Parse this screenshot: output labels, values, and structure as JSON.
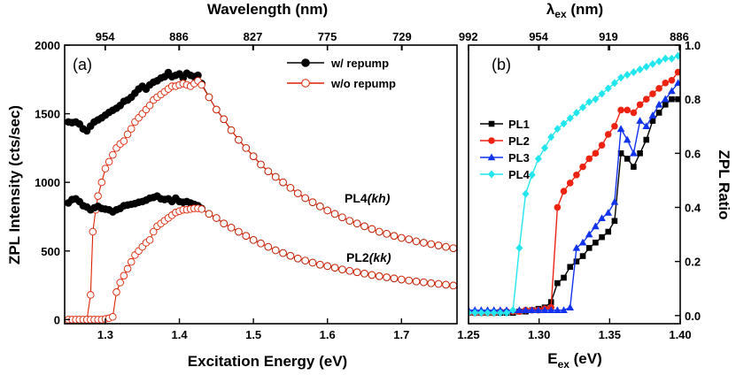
{
  "chart_data": [
    {
      "panel": "(a)",
      "type": "scatter",
      "xlabel": "Excitation Energy (eV)",
      "ylabel": "ZPL Intensity (cts/sec)",
      "top_xlabel": "Wavelength (nm)",
      "xlim": [
        1.245,
        1.775
      ],
      "ylim": [
        -30,
        2000
      ],
      "xticks": [
        1.3,
        1.4,
        1.5,
        1.6,
        1.7
      ],
      "xtick_labels": [
        "1.3",
        "1.4",
        "1.5",
        "1.6",
        "1.7"
      ],
      "yticks": [
        0,
        500,
        1000,
        1500,
        2000
      ],
      "ytick_labels": [
        "0",
        "500",
        "1000",
        "1500",
        "2000"
      ],
      "top_ticks": [
        954,
        886,
        827,
        775,
        729
      ],
      "top_tick_labels": [
        "954",
        "886",
        "827",
        "775",
        "729"
      ],
      "legend": [
        "w/ repump",
        "w/o repump"
      ],
      "annotations": [
        {
          "name": "PL4",
          "label": "(kh)"
        },
        {
          "name": "PL2",
          "label": "(kk)"
        }
      ],
      "series": [
        {
          "name": "PL4 w/ repump",
          "color": "#000000",
          "marker": "filled-circle",
          "x": [
            1.25,
            1.255,
            1.26,
            1.265,
            1.27,
            1.275,
            1.28,
            1.285,
            1.29,
            1.295,
            1.3,
            1.305,
            1.31,
            1.315,
            1.32,
            1.325,
            1.33,
            1.335,
            1.34,
            1.345,
            1.35,
            1.355,
            1.36,
            1.365,
            1.37,
            1.375,
            1.38,
            1.385,
            1.39,
            1.395,
            1.4,
            1.405,
            1.41,
            1.415,
            1.42,
            1.425,
            1.43,
            1.44,
            1.45,
            1.46,
            1.47,
            1.48,
            1.49,
            1.5,
            1.51,
            1.52,
            1.53,
            1.54,
            1.55,
            1.56,
            1.57,
            1.58,
            1.59,
            1.6,
            1.61,
            1.62,
            1.63,
            1.64,
            1.65,
            1.66,
            1.67,
            1.68,
            1.69,
            1.7,
            1.71,
            1.72,
            1.73,
            1.74,
            1.75,
            1.76,
            1.77
          ],
          "y": [
            1440,
            1435,
            1440,
            1425,
            1390,
            1375,
            1410,
            1440,
            1455,
            1470,
            1490,
            1510,
            1525,
            1540,
            1560,
            1590,
            1600,
            1620,
            1650,
            1680,
            1700,
            1680,
            1710,
            1730,
            1740,
            1760,
            1770,
            1800,
            1770,
            1780,
            1790,
            1760,
            1795,
            1780,
            1770,
            1780,
            1720,
            1620,
            1530,
            1460,
            1380,
            1310,
            1250,
            1190,
            1130,
            1080,
            1040,
            1000,
            960,
            920,
            885,
            855,
            825,
            795,
            770,
            745,
            720,
            700,
            680,
            660,
            640,
            625,
            610,
            595,
            585,
            570,
            560,
            550,
            540,
            530,
            520
          ]
        },
        {
          "name": "PL4 w/o repump",
          "color": "#dd2200",
          "marker": "open-circle",
          "x": [
            1.275,
            1.28,
            1.283,
            1.287,
            1.29,
            1.295,
            1.3,
            1.305,
            1.31,
            1.315,
            1.32,
            1.325,
            1.33,
            1.335,
            1.34,
            1.345,
            1.35,
            1.355,
            1.36,
            1.365,
            1.37,
            1.375,
            1.38,
            1.385,
            1.39,
            1.395,
            1.4,
            1.405,
            1.41,
            1.415,
            1.42,
            1.425,
            1.43,
            1.44,
            1.45,
            1.46,
            1.47,
            1.48,
            1.49,
            1.5,
            1.51,
            1.52,
            1.53,
            1.54,
            1.55,
            1.56,
            1.57,
            1.58,
            1.59,
            1.6,
            1.61,
            1.62,
            1.63,
            1.64,
            1.65,
            1.66,
            1.67,
            1.68,
            1.69,
            1.7,
            1.71,
            1.72,
            1.73,
            1.74,
            1.75,
            1.76,
            1.77
          ],
          "y": [
            0,
            180,
            640,
            800,
            900,
            1000,
            1100,
            1150,
            1200,
            1250,
            1280,
            1300,
            1350,
            1390,
            1440,
            1470,
            1500,
            1530,
            1560,
            1600,
            1620,
            1640,
            1660,
            1680,
            1700,
            1700,
            1710,
            1720,
            1710,
            1700,
            1720,
            1740,
            1710,
            1620,
            1530,
            1460,
            1380,
            1310,
            1250,
            1190,
            1130,
            1080,
            1040,
            1000,
            960,
            920,
            885,
            855,
            825,
            795,
            770,
            745,
            720,
            700,
            680,
            660,
            640,
            625,
            610,
            595,
            585,
            570,
            560,
            550,
            540,
            530,
            520
          ]
        },
        {
          "name": "PL2 w/ repump",
          "color": "#000000",
          "marker": "filled-circle",
          "x": [
            1.25,
            1.255,
            1.26,
            1.265,
            1.27,
            1.275,
            1.28,
            1.285,
            1.29,
            1.295,
            1.3,
            1.305,
            1.31,
            1.315,
            1.32,
            1.325,
            1.33,
            1.335,
            1.34,
            1.345,
            1.35,
            1.355,
            1.36,
            1.365,
            1.37,
            1.375,
            1.38,
            1.385,
            1.39,
            1.395,
            1.4,
            1.405,
            1.41,
            1.415,
            1.42,
            1.425,
            1.43,
            1.44,
            1.45,
            1.46,
            1.47,
            1.48,
            1.49,
            1.5,
            1.51,
            1.52,
            1.53,
            1.54,
            1.55,
            1.56,
            1.57,
            1.58,
            1.59,
            1.6,
            1.61,
            1.62,
            1.63,
            1.64,
            1.65,
            1.66,
            1.67,
            1.68,
            1.69,
            1.7,
            1.71,
            1.72,
            1.73,
            1.74,
            1.75,
            1.76,
            1.77
          ],
          "y": [
            850,
            875,
            880,
            860,
            830,
            820,
            800,
            815,
            825,
            810,
            805,
            800,
            785,
            800,
            810,
            830,
            835,
            840,
            845,
            855,
            860,
            870,
            885,
            890,
            900,
            880,
            875,
            880,
            860,
            885,
            860,
            855,
            860,
            850,
            840,
            830,
            810,
            770,
            740,
            700,
            670,
            640,
            610,
            580,
            555,
            530,
            505,
            485,
            465,
            445,
            430,
            415,
            400,
            390,
            378,
            365,
            355,
            345,
            335,
            325,
            316,
            308,
            300,
            292,
            285,
            278,
            272,
            265,
            260,
            254,
            248
          ]
        },
        {
          "name": "PL2 w/o repump",
          "color": "#dd2200",
          "marker": "open-circle",
          "x": [
            1.25,
            1.255,
            1.26,
            1.265,
            1.27,
            1.275,
            1.28,
            1.285,
            1.29,
            1.295,
            1.3,
            1.305,
            1.31,
            1.315,
            1.32,
            1.325,
            1.33,
            1.335,
            1.34,
            1.345,
            1.35,
            1.355,
            1.36,
            1.365,
            1.37,
            1.375,
            1.38,
            1.385,
            1.39,
            1.395,
            1.4,
            1.405,
            1.41,
            1.415,
            1.42,
            1.425,
            1.43,
            1.44,
            1.45,
            1.46,
            1.47,
            1.48,
            1.49,
            1.5,
            1.51,
            1.52,
            1.53,
            1.54,
            1.55,
            1.56,
            1.57,
            1.58,
            1.59,
            1.6,
            1.61,
            1.62,
            1.63,
            1.64,
            1.65,
            1.66,
            1.67,
            1.68,
            1.69,
            1.7,
            1.71,
            1.72,
            1.73,
            1.74,
            1.75,
            1.76,
            1.77
          ],
          "y": [
            0,
            0,
            0,
            0,
            0,
            0,
            0,
            0,
            0,
            0,
            5,
            10,
            20,
            200,
            270,
            320,
            370,
            420,
            470,
            500,
            530,
            560,
            580,
            640,
            680,
            700,
            720,
            740,
            760,
            780,
            790,
            800,
            800,
            805,
            810,
            810,
            805,
            770,
            740,
            700,
            670,
            640,
            610,
            580,
            555,
            530,
            505,
            485,
            465,
            445,
            430,
            415,
            400,
            390,
            378,
            365,
            355,
            345,
            335,
            325,
            316,
            308,
            300,
            292,
            285,
            278,
            272,
            265,
            260,
            254,
            248
          ]
        }
      ]
    },
    {
      "panel": "(b)",
      "type": "line",
      "xlabel": "E",
      "xlabel_sub": "ex",
      "xlabel_unit": " (eV)",
      "ylabel": "ZPL Ratio",
      "top_xlabel": "λ",
      "top_xlabel_sub": "ex",
      "top_xlabel_unit": " (nm)",
      "xlim": [
        1.25,
        1.4
      ],
      "ylim": [
        -0.03,
        1.0
      ],
      "xticks": [
        1.25,
        1.3,
        1.35,
        1.4
      ],
      "xtick_labels": [
        "1.25",
        "1.30",
        "1.35",
        "1.40"
      ],
      "yticks": [
        0.0,
        0.2,
        0.4,
        0.6,
        0.8,
        1.0
      ],
      "ytick_labels": [
        "0.0",
        "0.2",
        "0.4",
        "0.6",
        "0.8",
        "1.0"
      ],
      "top_ticks": [
        992,
        954,
        919,
        886
      ],
      "top_tick_labels": [
        "992",
        "954",
        "919",
        "886"
      ],
      "legend": [
        "PL1",
        "PL2",
        "PL3",
        "PL4"
      ],
      "series": [
        {
          "name": "PL1",
          "color": "#000000",
          "marker": "square",
          "x": [
            1.25,
            1.2545,
            1.259,
            1.2635,
            1.268,
            1.2725,
            1.277,
            1.2815,
            1.286,
            1.2905,
            1.295,
            1.2995,
            1.304,
            1.3085,
            1.313,
            1.3175,
            1.322,
            1.3265,
            1.331,
            1.3355,
            1.34,
            1.3445,
            1.349,
            1.3535,
            1.358,
            1.3625,
            1.367,
            1.3715,
            1.376,
            1.3805,
            1.385,
            1.3895,
            1.394,
            1.3985
          ],
          "y": [
            0.01,
            0.01,
            0.01,
            0.01,
            0.01,
            0.01,
            0.01,
            0.01,
            0.015,
            0.015,
            0.02,
            0.025,
            0.03,
            0.05,
            0.12,
            0.14,
            0.18,
            0.2,
            0.22,
            0.25,
            0.27,
            0.29,
            0.31,
            0.35,
            0.6,
            0.58,
            0.55,
            0.6,
            0.65,
            0.72,
            0.75,
            0.78,
            0.8,
            0.8
          ]
        },
        {
          "name": "PL2",
          "color": "#ee2211",
          "marker": "circle",
          "x": [
            1.25,
            1.2545,
            1.259,
            1.2635,
            1.268,
            1.2725,
            1.277,
            1.2815,
            1.286,
            1.2905,
            1.295,
            1.2995,
            1.304,
            1.3085,
            1.313,
            1.3175,
            1.322,
            1.3265,
            1.331,
            1.3355,
            1.34,
            1.3445,
            1.349,
            1.3535,
            1.358,
            1.3625,
            1.367,
            1.3715,
            1.376,
            1.3805,
            1.385,
            1.3895,
            1.394,
            1.3985
          ],
          "y": [
            0.01,
            0.01,
            0.01,
            0.01,
            0.01,
            0.015,
            0.015,
            0.015,
            0.015,
            0.02,
            0.02,
            0.02,
            0.025,
            0.03,
            0.4,
            0.46,
            0.49,
            0.52,
            0.55,
            0.58,
            0.6,
            0.63,
            0.67,
            0.7,
            0.76,
            0.76,
            0.75,
            0.78,
            0.8,
            0.82,
            0.84,
            0.86,
            0.87,
            0.9
          ]
        },
        {
          "name": "PL3",
          "color": "#1133ee",
          "marker": "triangle",
          "x": [
            1.25,
            1.2545,
            1.259,
            1.2635,
            1.268,
            1.2725,
            1.277,
            1.2815,
            1.286,
            1.2905,
            1.295,
            1.2995,
            1.304,
            1.3085,
            1.313,
            1.3175,
            1.322,
            1.3265,
            1.331,
            1.3355,
            1.34,
            1.3445,
            1.349,
            1.3535,
            1.358,
            1.3625,
            1.367,
            1.3715,
            1.376,
            1.3805,
            1.385,
            1.3895,
            1.394,
            1.3985
          ],
          "y": [
            0.02,
            0.02,
            0.02,
            0.02,
            0.02,
            0.02,
            0.02,
            0.02,
            0.02,
            0.02,
            0.02,
            0.02,
            0.02,
            0.02,
            0.02,
            0.02,
            0.03,
            0.25,
            0.27,
            0.3,
            0.33,
            0.36,
            0.38,
            0.42,
            0.69,
            0.65,
            0.6,
            0.72,
            0.7,
            0.74,
            0.78,
            0.8,
            0.83,
            0.86
          ]
        },
        {
          "name": "PL4",
          "color": "#22e6ee",
          "marker": "diamond",
          "x": [
            1.25,
            1.2545,
            1.259,
            1.2635,
            1.268,
            1.2725,
            1.277,
            1.2815,
            1.286,
            1.2905,
            1.295,
            1.2995,
            1.304,
            1.3085,
            1.313,
            1.3175,
            1.322,
            1.3265,
            1.331,
            1.3355,
            1.34,
            1.3445,
            1.349,
            1.3535,
            1.358,
            1.3625,
            1.367,
            1.3715,
            1.376,
            1.3805,
            1.385,
            1.3895,
            1.394,
            1.3985
          ],
          "y": [
            0.01,
            0.01,
            0.01,
            0.01,
            0.01,
            0.01,
            0.01,
            0.02,
            0.25,
            0.45,
            0.52,
            0.58,
            0.62,
            0.66,
            0.69,
            0.71,
            0.73,
            0.75,
            0.77,
            0.79,
            0.8,
            0.82,
            0.84,
            0.86,
            0.88,
            0.89,
            0.9,
            0.91,
            0.92,
            0.93,
            0.94,
            0.95,
            0.95,
            0.96
          ]
        }
      ]
    }
  ]
}
